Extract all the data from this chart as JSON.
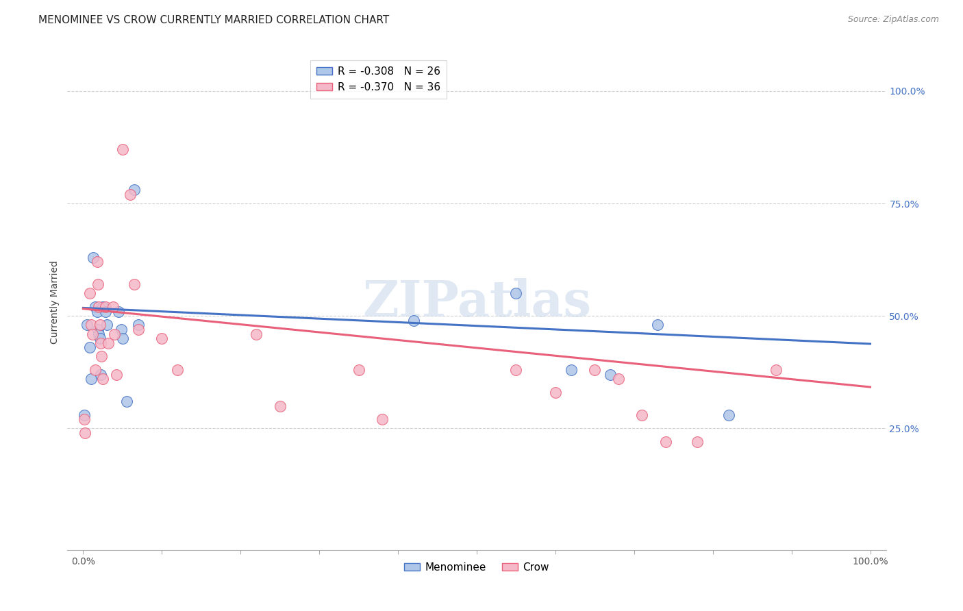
{
  "title": "MENOMINEE VS CROW CURRENTLY MARRIED CORRELATION CHART",
  "source": "Source: ZipAtlas.com",
  "ylabel": "Currently Married",
  "xlim": [
    -0.02,
    1.02
  ],
  "ylim": [
    -0.02,
    1.08
  ],
  "ytick_values": [
    0.25,
    0.5,
    0.75,
    1.0
  ],
  "right_ytick_labels": [
    "25.0%",
    "50.0%",
    "75.0%",
    "100.0%"
  ],
  "xtick_values": [
    0.0,
    0.1,
    0.2,
    0.3,
    0.4,
    0.5,
    0.6,
    0.7,
    0.8,
    0.9,
    1.0
  ],
  "xtick_labels": [
    "0.0%",
    "",
    "",
    "",
    "",
    "",
    "",
    "",
    "",
    "",
    "100.0%"
  ],
  "menominee_color": "#aec6e8",
  "crow_color": "#f5b8c8",
  "menominee_edge_color": "#4472c4",
  "crow_edge_color": "#e8607a",
  "menominee_line_color": "#4472c4",
  "crow_line_color": "#e8607a",
  "grid_color": "#d0d0d0",
  "background_color": "#ffffff",
  "watermark": "ZIPatlas",
  "watermark_color": "#c8d8ea",
  "menominee_x": [
    0.001,
    0.005,
    0.008,
    0.01,
    0.013,
    0.015,
    0.018,
    0.019,
    0.02,
    0.021,
    0.022,
    0.025,
    0.028,
    0.03,
    0.045,
    0.048,
    0.05,
    0.055,
    0.065,
    0.07,
    0.42,
    0.55,
    0.62,
    0.67,
    0.73,
    0.82
  ],
  "menominee_y": [
    0.28,
    0.48,
    0.43,
    0.36,
    0.63,
    0.52,
    0.51,
    0.47,
    0.46,
    0.45,
    0.37,
    0.52,
    0.51,
    0.48,
    0.51,
    0.47,
    0.45,
    0.31,
    0.78,
    0.48,
    0.49,
    0.55,
    0.38,
    0.37,
    0.48,
    0.28
  ],
  "crow_x": [
    0.001,
    0.002,
    0.008,
    0.01,
    0.012,
    0.015,
    0.018,
    0.019,
    0.02,
    0.021,
    0.022,
    0.023,
    0.025,
    0.028,
    0.032,
    0.038,
    0.04,
    0.042,
    0.05,
    0.06,
    0.065,
    0.07,
    0.1,
    0.12,
    0.22,
    0.25,
    0.35,
    0.38,
    0.55,
    0.6,
    0.65,
    0.68,
    0.71,
    0.74,
    0.78,
    0.88
  ],
  "crow_y": [
    0.27,
    0.24,
    0.55,
    0.48,
    0.46,
    0.38,
    0.62,
    0.57,
    0.52,
    0.48,
    0.44,
    0.41,
    0.36,
    0.52,
    0.44,
    0.52,
    0.46,
    0.37,
    0.87,
    0.77,
    0.57,
    0.47,
    0.45,
    0.38,
    0.46,
    0.3,
    0.38,
    0.27,
    0.38,
    0.33,
    0.38,
    0.36,
    0.28,
    0.22,
    0.22,
    0.38
  ],
  "menominee_trendline_x": [
    0.0,
    1.0
  ],
  "menominee_trendline_y": [
    0.518,
    0.438
  ],
  "crow_trendline_x": [
    0.0,
    1.0
  ],
  "crow_trendline_y": [
    0.516,
    0.342
  ],
  "title_fontsize": 11,
  "source_fontsize": 9,
  "axis_fontsize": 10,
  "legend_fontsize": 11
}
